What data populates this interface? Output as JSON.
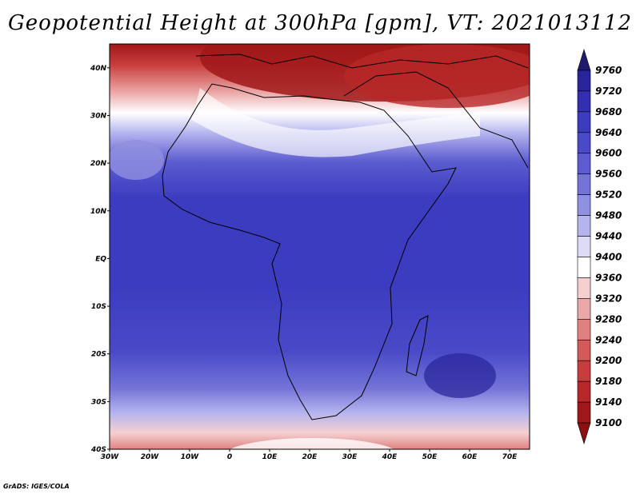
{
  "title": "Geopotential Height at 300hPa [gpm], VT: 2021013112",
  "credit": "GrADS: IGES/COLA",
  "map": {
    "lat_labels": [
      "40N",
      "30N",
      "20N",
      "10N",
      "EQ",
      "10S",
      "20S",
      "30S",
      "40S"
    ],
    "lat_values": [
      40,
      30,
      20,
      10,
      0,
      -10,
      -20,
      -30,
      -40
    ],
    "lon_labels": [
      "30W",
      "20W",
      "10W",
      "0",
      "10E",
      "20E",
      "30E",
      "40E",
      "50E",
      "60E",
      "70E"
    ],
    "lon_values": [
      -30,
      -20,
      -10,
      0,
      10,
      20,
      30,
      40,
      50,
      60,
      70
    ],
    "lon_range": [
      -30,
      75
    ],
    "lat_range": [
      -40,
      45
    ]
  },
  "colorbar": {
    "levels": [
      "9760",
      "9720",
      "9680",
      "9640",
      "9600",
      "9560",
      "9520",
      "9480",
      "9440",
      "9400",
      "9360",
      "9320",
      "9280",
      "9240",
      "9200",
      "9180",
      "9140",
      "9100"
    ],
    "colors": [
      "#1e1a6e",
      "#28249a",
      "#3230b0",
      "#3c3cc0",
      "#4a4ac8",
      "#5c5cd0",
      "#7474d8",
      "#9090e0",
      "#b4b4ee",
      "#dcdcf8",
      "#ffffff",
      "#f6d0d0",
      "#eca8a8",
      "#e08080",
      "#d45a5a",
      "#c83c3c",
      "#b82828",
      "#a01818",
      "#8c1010"
    ]
  }
}
